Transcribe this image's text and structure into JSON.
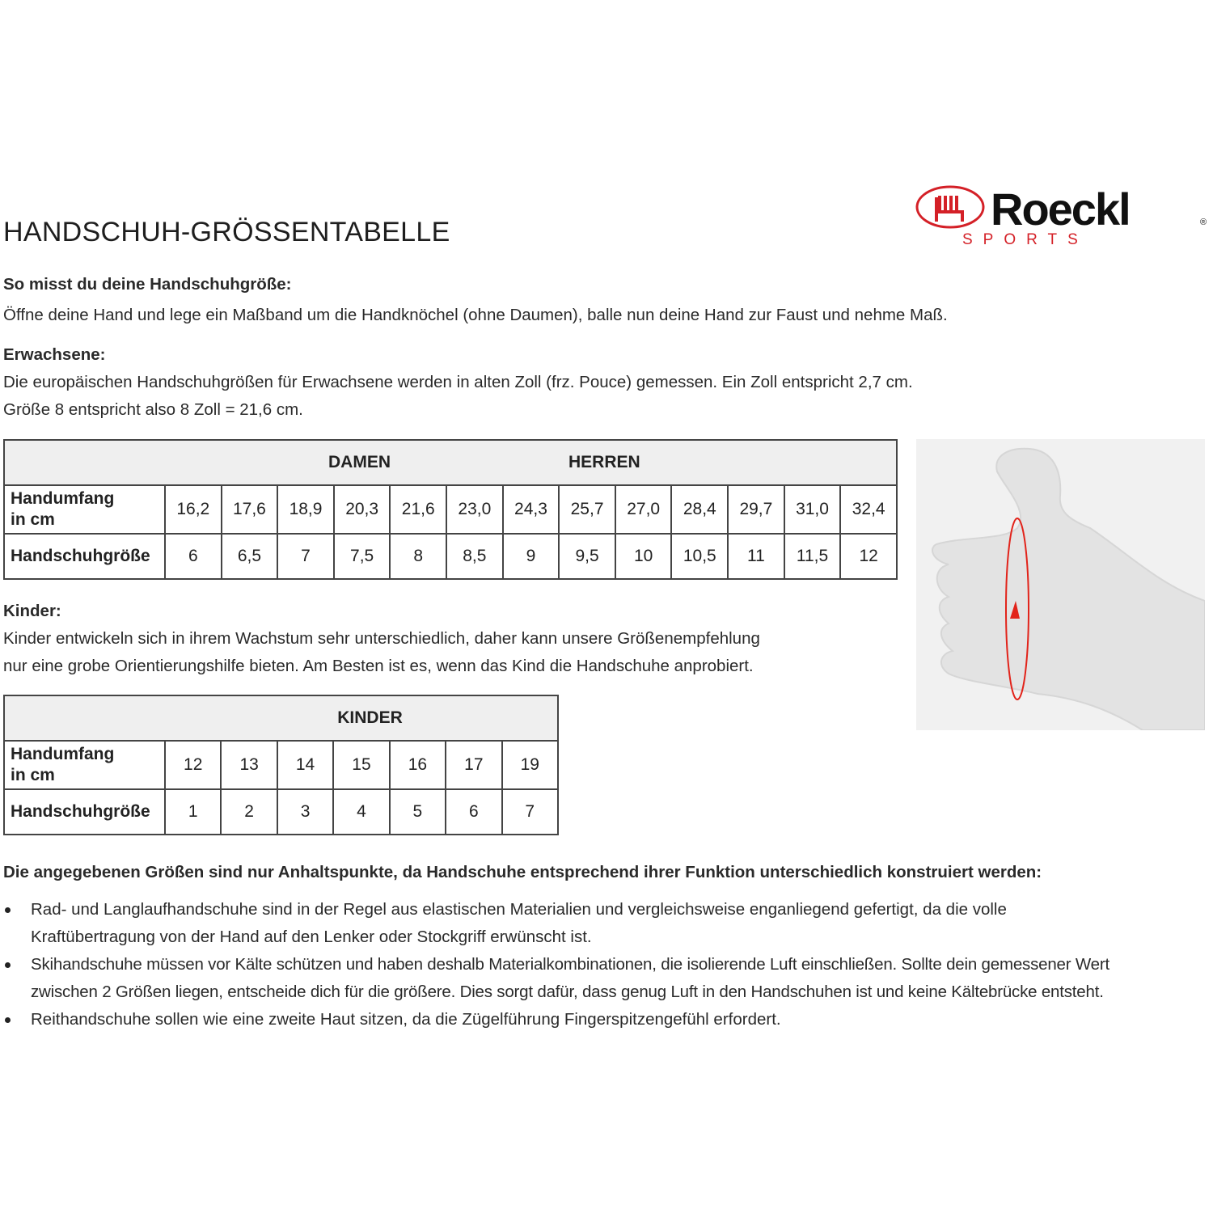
{
  "title": "HANDSCHUH-GRÖSSENTABELLE",
  "logo": {
    "brand": "Roeckl",
    "sub": "SPORTS",
    "registered": "®",
    "color_red": "#d42027",
    "color_black": "#111111"
  },
  "measure": {
    "heading": "So misst du deine Handschuhgröße:",
    "text": "Öffne deine Hand und lege ein Maßband um die Handknöchel (ohne Daumen), balle nun deine Hand zur Faust und nehme Maß."
  },
  "adults": {
    "heading": "Erwachsene:",
    "lines": [
      "Die europäischen Handschuhgrößen für Erwachsene werden in alten Zoll (frz. Pouce) gemessen. Ein Zoll entspricht 2,7 cm.",
      "Größe 8 entspricht also 8 Zoll = 21,6 cm."
    ]
  },
  "adult_table": {
    "group_labels": [
      "DAMEN",
      "HERREN"
    ],
    "row_labels": [
      "Handumfang in cm",
      "Handschuhgröße"
    ],
    "row_label_lines": [
      [
        "Handumfang",
        "in cm"
      ],
      [
        "Handschuhgröße"
      ]
    ],
    "circumference": [
      "16,2",
      "17,6",
      "18,9",
      "20,3",
      "21,6",
      "23,0",
      "24,3",
      "25,7",
      "27,0",
      "28,4",
      "29,7",
      "31,0",
      "32,4"
    ],
    "size": [
      "6",
      "6,5",
      "7",
      "7,5",
      "8",
      "8,5",
      "9",
      "9,5",
      "10",
      "10,5",
      "11",
      "11,5",
      "12"
    ]
  },
  "kids": {
    "heading": "Kinder:",
    "lines": [
      "Kinder entwickeln sich in ihrem Wachstum sehr unterschiedlich, daher kann unsere Größenempfehlung",
      "nur eine grobe Orientierungshilfe bieten. Am Besten ist es, wenn das Kind die Handschuhe anprobiert."
    ]
  },
  "kids_table": {
    "group_label": "KINDER",
    "row_label_lines": [
      [
        "Handumfang",
        "in cm"
      ],
      [
        "Handschuhgröße"
      ]
    ],
    "circumference": [
      "12",
      "13",
      "14",
      "15",
      "16",
      "17",
      "19"
    ],
    "size": [
      "1",
      "2",
      "3",
      "4",
      "5",
      "6",
      "7"
    ]
  },
  "notes": {
    "heading": "Die angegebenen Größen sind nur Anhaltspunkte, da Handschuhe entsprechend ihrer Funktion unterschiedlich konstruiert werden:",
    "bullets": [
      [
        "Rad- und Langlaufhandschuhe sind in der Regel aus elastischen Materialien und vergleichsweise enganliegend gefertigt, da die volle",
        "Kraftübertragung von der Hand auf den Lenker oder Stockgriff erwünscht ist."
      ],
      [
        "Skihandschuhe müssen vor Kälte schützen und haben deshalb Materialkombinationen, die isolierende Luft einschließen. Sollte dein gemessener Wert",
        "zwischen 2 Größen liegen, entscheide dich für die größere. Dies sorgt dafür, dass genug Luft in den Handschuhen ist und keine Kältebrücke entsteht."
      ],
      [
        "Reithandschuhe sollen wie eine zweite Haut sitzen, da die Zügelführung Fingerspitzengefühl erfordert."
      ]
    ]
  },
  "illustration": {
    "icon": "hand-measure-illustration",
    "arrow_color": "#e2231a"
  }
}
